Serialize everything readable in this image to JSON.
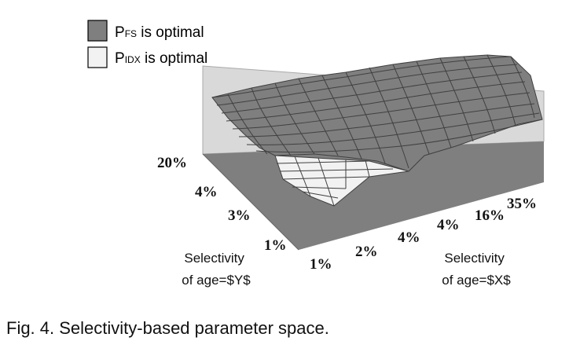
{
  "caption": "Fig. 4. Selectivity-based parameter space.",
  "chart_data": {
    "type": "surface3d",
    "legend": {
      "placement": "top-left",
      "items": [
        {
          "name": "P",
          "sub": "FS",
          "suffix": " is optimal",
          "color": "#7f7f7f"
        },
        {
          "name": "P",
          "sub": "IDX",
          "suffix": " is optimal",
          "color": "#f2f2f2"
        }
      ]
    },
    "xlabel": [
      "Selectivity",
      "of age=$X$"
    ],
    "ylabel": [
      "Selectivity",
      "of age=$Y$"
    ],
    "x_ticks": [
      "1%",
      "2%",
      "4%",
      "4%",
      "16%",
      "35%"
    ],
    "y_ticks": [
      "20%",
      "4%",
      "3%",
      "1%"
    ],
    "colors": {
      "fs": "#7f7f7f",
      "idx": "#f2f2f2",
      "wall": "#d9d9d9",
      "floor": "#7f7f7f",
      "grid": "#404040"
    }
  }
}
